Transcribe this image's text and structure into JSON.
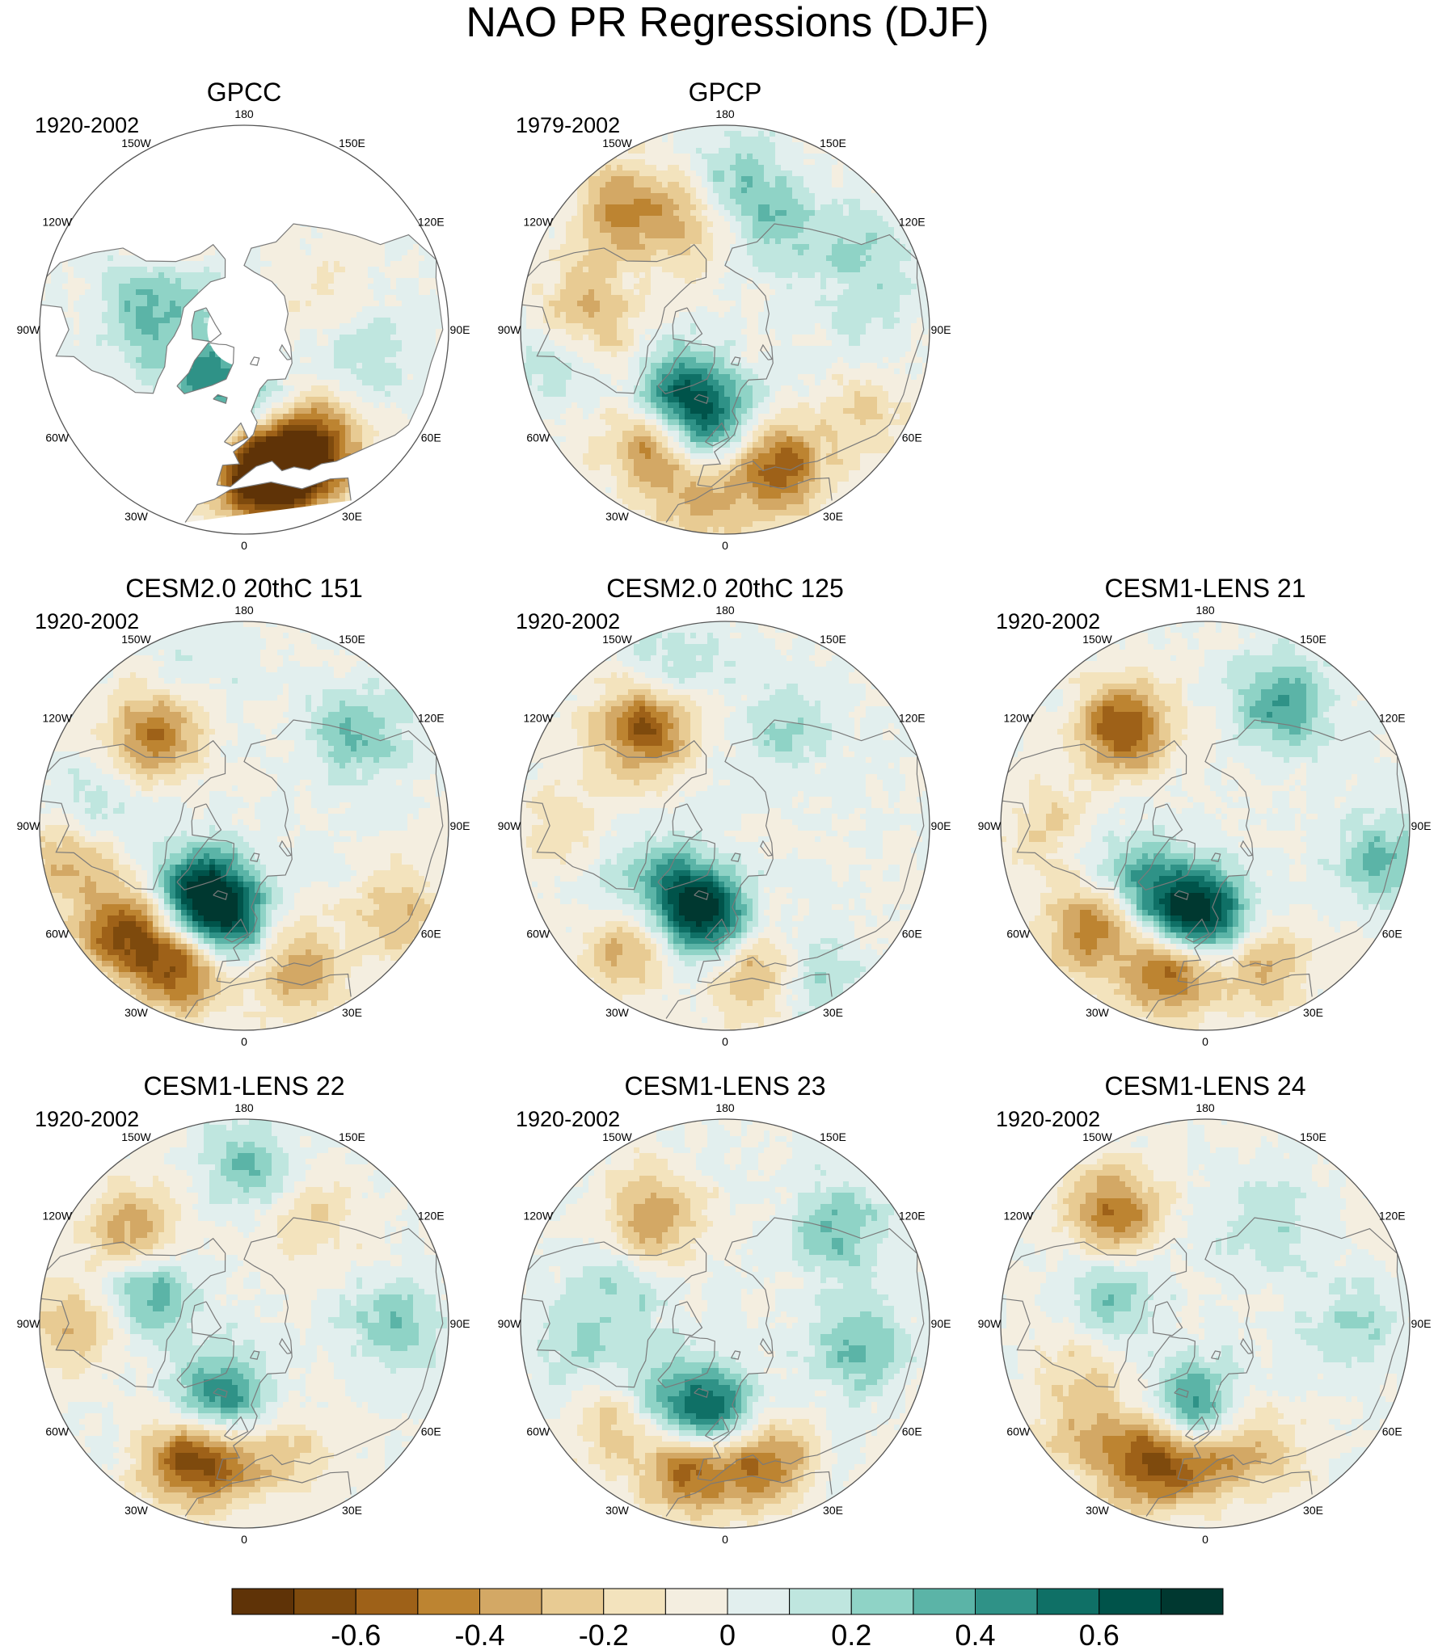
{
  "title": "NAO PR Regressions (DJF)",
  "colors": {
    "land_outline": "#7a7a7a",
    "missing": "#ffffff",
    "bins": [
      "#5f3307",
      "#7e4a0d",
      "#9e6118",
      "#bd8431",
      "#d3a865",
      "#e8cb93",
      "#f3e3bd",
      "#f4eee0",
      "#e2efee",
      "#bfe6df",
      "#8fd3c6",
      "#5bb4a7",
      "#2f9287",
      "#0f7066",
      "#00534a",
      "#003830"
    ]
  },
  "chart_data": {
    "type": "heatmap",
    "projection": "north-polar-stereographic",
    "longitude_labels": [
      "180",
      "150E",
      "120E",
      "90E",
      "60E",
      "30E",
      "0",
      "30W",
      "60W",
      "90W",
      "120W",
      "150W"
    ],
    "colorbar": {
      "levels": [
        -0.7,
        -0.6,
        -0.5,
        -0.4,
        -0.3,
        -0.2,
        -0.1,
        0,
        0.1,
        0.2,
        0.3,
        0.4,
        0.5,
        0.6,
        0.7
      ],
      "tick_values": [
        -0.6,
        -0.4,
        -0.2,
        0,
        0.2,
        0.4,
        0.6
      ],
      "tick_labels": [
        "-0.6",
        "-0.4",
        "-0.2",
        "0",
        "0.2",
        "0.4",
        "0.6"
      ]
    },
    "panels": [
      {
        "title": "GPCC",
        "period": "1920-2002",
        "land_only": true,
        "features": [
          {
            "lon": 5,
            "lat": 40,
            "value": -0.7
          },
          {
            "lon": 25,
            "lat": 42,
            "value": -0.5
          },
          {
            "lon": 15,
            "lat": 45,
            "value": -0.5
          },
          {
            "lon": -40,
            "lat": 70,
            "value": 0.4
          },
          {
            "lon": -135,
            "lat": 65,
            "value": 0.15
          },
          {
            "lon": -100,
            "lat": 55,
            "value": 0.3
          },
          {
            "lon": 80,
            "lat": 48,
            "value": 0.2
          },
          {
            "lon": 40,
            "lat": 50,
            "value": -0.2
          },
          {
            "lon": 10,
            "lat": 60,
            "value": 0.3
          },
          {
            "lon": -150,
            "lat": 45,
            "value": -0.3
          },
          {
            "lon": 120,
            "lat": 60,
            "value": -0.1
          }
        ]
      },
      {
        "title": "GPCP",
        "period": "1979-2002",
        "land_only": false,
        "features": [
          {
            "lon": -35,
            "lat": 45,
            "value": -0.5
          },
          {
            "lon": 20,
            "lat": 40,
            "value": -0.6
          },
          {
            "lon": -50,
            "lat": 62,
            "value": 0.5
          },
          {
            "lon": -15,
            "lat": 60,
            "value": 0.6
          },
          {
            "lon": -140,
            "lat": 35,
            "value": -0.4
          },
          {
            "lon": -160,
            "lat": 50,
            "value": -0.3
          },
          {
            "lon": -100,
            "lat": 40,
            "value": -0.3
          },
          {
            "lon": -75,
            "lat": 55,
            "value": -0.2
          },
          {
            "lon": 175,
            "lat": 40,
            "value": 0.3
          },
          {
            "lon": 150,
            "lat": 50,
            "value": 0.2
          },
          {
            "lon": 90,
            "lat": 40,
            "value": 0.1
          },
          {
            "lon": -80,
            "lat": 30,
            "value": 0.2
          },
          {
            "lon": -10,
            "lat": 30,
            "value": -0.3
          },
          {
            "lon": 60,
            "lat": 35,
            "value": -0.2
          },
          {
            "lon": 120,
            "lat": 35,
            "value": 0.2
          }
        ]
      },
      {
        "title": "CESM2.0 20thC 151",
        "period": "1920-2002",
        "land_only": false,
        "features": [
          {
            "lon": -50,
            "lat": 35,
            "value": -0.6
          },
          {
            "lon": -25,
            "lat": 38,
            "value": -0.6
          },
          {
            "lon": -35,
            "lat": 62,
            "value": 0.7
          },
          {
            "lon": -10,
            "lat": 58,
            "value": 0.5
          },
          {
            "lon": -135,
            "lat": 45,
            "value": -0.5
          },
          {
            "lon": 20,
            "lat": 40,
            "value": -0.4
          },
          {
            "lon": -80,
            "lat": 28,
            "value": -0.3
          },
          {
            "lon": 130,
            "lat": 40,
            "value": 0.3
          },
          {
            "lon": -100,
            "lat": 40,
            "value": 0.2
          },
          {
            "lon": 60,
            "lat": 30,
            "value": -0.3
          },
          {
            "lon": -160,
            "lat": 30,
            "value": 0.1
          }
        ]
      },
      {
        "title": "CESM2.0 20thC 125",
        "period": "1920-2002",
        "land_only": false,
        "features": [
          {
            "lon": -40,
            "lat": 38,
            "value": -0.4
          },
          {
            "lon": 10,
            "lat": 40,
            "value": -0.4
          },
          {
            "lon": -30,
            "lat": 62,
            "value": 0.6
          },
          {
            "lon": -10,
            "lat": 56,
            "value": 0.4
          },
          {
            "lon": -140,
            "lat": 45,
            "value": -0.6
          },
          {
            "lon": -90,
            "lat": 35,
            "value": -0.2
          },
          {
            "lon": 30,
            "lat": 30,
            "value": 0.2
          },
          {
            "lon": 150,
            "lat": 50,
            "value": 0.2
          },
          {
            "lon": -160,
            "lat": 30,
            "value": 0.2
          },
          {
            "lon": -65,
            "lat": 50,
            "value": 0.2
          }
        ]
      },
      {
        "title": "CESM1-LENS 21",
        "period": "1920-2002",
        "land_only": false,
        "features": [
          {
            "lon": -50,
            "lat": 38,
            "value": -0.5
          },
          {
            "lon": -15,
            "lat": 40,
            "value": -0.6
          },
          {
            "lon": -20,
            "lat": 60,
            "value": 0.6
          },
          {
            "lon": 5,
            "lat": 58,
            "value": 0.5
          },
          {
            "lon": -140,
            "lat": 45,
            "value": -0.6
          },
          {
            "lon": 20,
            "lat": 42,
            "value": -0.4
          },
          {
            "lon": 150,
            "lat": 40,
            "value": 0.4
          },
          {
            "lon": -90,
            "lat": 35,
            "value": -0.2
          },
          {
            "lon": 80,
            "lat": 30,
            "value": 0.3
          },
          {
            "lon": -60,
            "lat": 58,
            "value": 0.3
          }
        ]
      },
      {
        "title": "CESM1-LENS 22",
        "period": "1920-2002",
        "land_only": false,
        "features": [
          {
            "lon": -25,
            "lat": 40,
            "value": -0.5
          },
          {
            "lon": -10,
            "lat": 45,
            "value": -0.4
          },
          {
            "lon": -20,
            "lat": 62,
            "value": 0.6
          },
          {
            "lon": -130,
            "lat": 40,
            "value": -0.4
          },
          {
            "lon": -110,
            "lat": 55,
            "value": 0.4
          },
          {
            "lon": 180,
            "lat": 35,
            "value": 0.3
          },
          {
            "lon": 150,
            "lat": 45,
            "value": -0.2
          },
          {
            "lon": -90,
            "lat": 30,
            "value": -0.3
          },
          {
            "lon": 20,
            "lat": 45,
            "value": -0.2
          },
          {
            "lon": 90,
            "lat": 40,
            "value": 0.3
          }
        ]
      },
      {
        "title": "CESM1-LENS 23",
        "period": "1920-2002",
        "land_only": false,
        "features": [
          {
            "lon": -15,
            "lat": 40,
            "value": -0.6
          },
          {
            "lon": 15,
            "lat": 42,
            "value": -0.5
          },
          {
            "lon": -10,
            "lat": 60,
            "value": 0.6
          },
          {
            "lon": -145,
            "lat": 45,
            "value": -0.4
          },
          {
            "lon": -50,
            "lat": 40,
            "value": -0.3
          },
          {
            "lon": 130,
            "lat": 40,
            "value": 0.3
          },
          {
            "lon": -110,
            "lat": 50,
            "value": 0.2
          },
          {
            "lon": -80,
            "lat": 40,
            "value": 0.2
          },
          {
            "lon": 80,
            "lat": 45,
            "value": 0.3
          },
          {
            "lon": -40,
            "lat": 55,
            "value": 0.3
          }
        ]
      },
      {
        "title": "CESM1-LENS 24",
        "period": "1920-2002",
        "land_only": false,
        "features": [
          {
            "lon": -25,
            "lat": 40,
            "value": -0.6
          },
          {
            "lon": -5,
            "lat": 45,
            "value": -0.4
          },
          {
            "lon": -10,
            "lat": 60,
            "value": 0.6
          },
          {
            "lon": -140,
            "lat": 40,
            "value": -0.5
          },
          {
            "lon": -110,
            "lat": 55,
            "value": 0.3
          },
          {
            "lon": 20,
            "lat": 45,
            "value": -0.3
          },
          {
            "lon": 150,
            "lat": 50,
            "value": 0.2
          },
          {
            "lon": -70,
            "lat": 45,
            "value": -0.2
          },
          {
            "lon": 90,
            "lat": 40,
            "value": 0.2
          },
          {
            "lon": -50,
            "lat": 30,
            "value": -0.2
          }
        ]
      }
    ]
  }
}
